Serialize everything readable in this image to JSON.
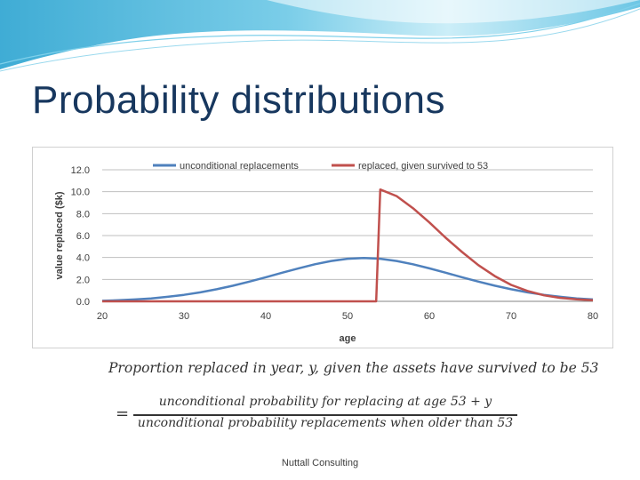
{
  "slide": {
    "title": "Probability distributions",
    "footer": "Nuttall Consulting"
  },
  "formula": {
    "line1": "Proportion replaced in year, y, given the assets have survived to be 53",
    "equals": "=",
    "numerator": "unconditional probability for replacing at age 53 + y",
    "denominator": "unconditional probability replacements when older than 53"
  },
  "colors": {
    "unconditional": "#4F81BD",
    "conditional": "#C0504D",
    "title": "#17375E"
  },
  "chart_data": {
    "type": "line",
    "title": "",
    "xlabel": "age",
    "ylabel": "value replaced ($k)",
    "xlim": [
      20,
      80
    ],
    "ylim": [
      0,
      12
    ],
    "x_ticks": [
      "20",
      "30",
      "40",
      "50",
      "60",
      "70",
      "80"
    ],
    "y_ticks": [
      "0.0",
      "2.0",
      "4.0",
      "6.0",
      "8.0",
      "10.0",
      "12.0"
    ],
    "grid": "horizontal",
    "legend_position": "top",
    "series": [
      {
        "name": "unconditional replacements",
        "color": "#4F81BD",
        "x": [
          20,
          22,
          24,
          26,
          28,
          30,
          32,
          34,
          36,
          38,
          40,
          42,
          44,
          46,
          48,
          50,
          52,
          54,
          56,
          58,
          60,
          62,
          64,
          66,
          68,
          70,
          72,
          74,
          76,
          78,
          80
        ],
        "values": [
          0.05,
          0.1,
          0.17,
          0.27,
          0.41,
          0.59,
          0.82,
          1.1,
          1.43,
          1.8,
          2.2,
          2.61,
          3.01,
          3.38,
          3.68,
          3.88,
          3.96,
          3.88,
          3.68,
          3.38,
          3.01,
          2.61,
          2.2,
          1.8,
          1.43,
          1.1,
          0.82,
          0.59,
          0.41,
          0.27,
          0.17
        ]
      },
      {
        "name": "replaced, given survived to 53",
        "color": "#C0504D",
        "x": [
          20,
          30,
          40,
          50,
          53,
          53.5,
          54,
          56,
          58,
          60,
          62,
          64,
          66,
          68,
          70,
          72,
          74,
          76,
          78,
          80
        ],
        "values": [
          0,
          0,
          0,
          0,
          0,
          0,
          10.2,
          9.6,
          8.5,
          7.2,
          5.8,
          4.5,
          3.3,
          2.3,
          1.5,
          0.95,
          0.55,
          0.32,
          0.18,
          0.1
        ]
      }
    ]
  }
}
